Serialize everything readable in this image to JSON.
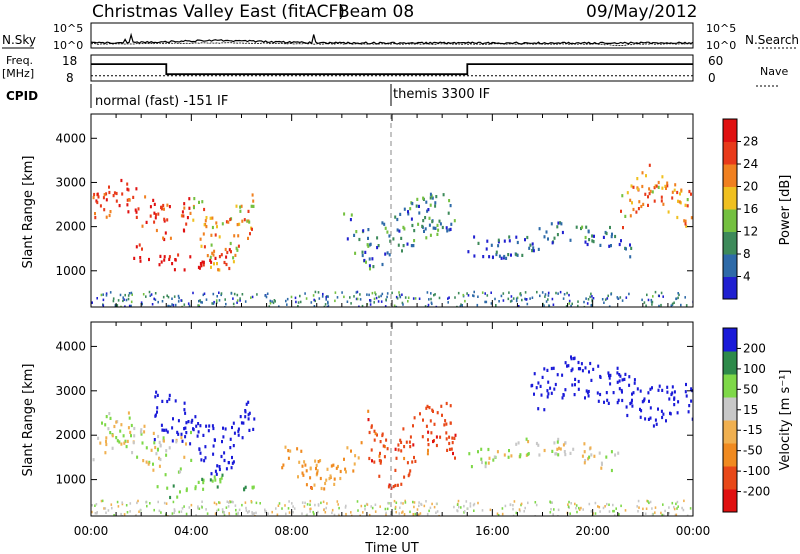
{
  "header": {
    "title": "Christmas Valley East (fitACF)",
    "beam": "Beam 08",
    "date": "09/May/2012"
  },
  "panels": {
    "nsky_label": "N.Sky",
    "nsky_ticks": [
      "10^5",
      "10^0"
    ],
    "nsearch_label": "N.Search",
    "nsearch_ticks": [
      "10^5",
      "10^0"
    ],
    "freq_label_1": "Freq.",
    "freq_label_2": "[MHz]",
    "freq_ticks": [
      "18",
      "8"
    ],
    "nave_label": "Nave",
    "nave_ticks": [
      "60",
      "0"
    ],
    "cpid_label": "CPID",
    "cpid_mode_1": "normal (fast) -151 IF",
    "cpid_mode_2": "themis 3300 IF"
  },
  "axes": {
    "ylabel": "Slant Range [km]",
    "xlabel": "Time UT",
    "yticks": [
      "4000",
      "3000",
      "2000",
      "1000"
    ],
    "xticks": [
      "00:00",
      "04:00",
      "08:00",
      "12:00",
      "16:00",
      "20:00",
      "00:00"
    ]
  },
  "colorbars": {
    "power": {
      "label": "Power [dB]",
      "ticks": [
        "28",
        "24",
        "20",
        "16",
        "12",
        "8",
        "4"
      ],
      "colors": [
        "#2020d0",
        "#2e6aa8",
        "#3d8a5a",
        "#74c040",
        "#f0c020",
        "#f08020",
        "#e83a1a",
        "#e01010"
      ]
    },
    "velocity": {
      "label": "Velocity [m s⁻¹]",
      "ticks": [
        "200",
        "100",
        "50",
        "15",
        "-15",
        "-50",
        "-100",
        "-200"
      ],
      "colors": [
        "#1a1ad8",
        "#2e8a4a",
        "#7ed848",
        "#c8c8c8",
        "#f0b050",
        "#f08a20",
        "#e84818",
        "#e01010"
      ]
    }
  },
  "chart_data": [
    {
      "type": "line",
      "title": "N.Sky / N.Search",
      "x": [
        "00:00",
        "04:00",
        "08:00",
        "12:00",
        "16:00",
        "20:00",
        "00:00"
      ],
      "series": [
        {
          "name": "N.Sky",
          "values": [
            1.2,
            1.6,
            1.0,
            1.1,
            1.0,
            1.1,
            1.1
          ]
        },
        {
          "name": "N.Search",
          "values": [
            0.9,
            1.0,
            0.6,
            0.9,
            0.9,
            0.7,
            1.0
          ]
        }
      ]
    },
    {
      "type": "line",
      "title": "Freq. [MHz] / Nave",
      "x_hours": [
        0,
        3,
        3,
        15,
        15,
        24
      ],
      "series": [
        {
          "name": "Freq.",
          "values": [
            14.5,
            14.5,
            10.6,
            10.6,
            14.5,
            14.5
          ]
        },
        {
          "name": "Nave",
          "values": [
            12,
            12,
            12,
            12,
            12,
            12
          ]
        }
      ],
      "ylim": [
        8,
        18
      ]
    },
    {
      "type": "heatmap",
      "title": "Power [dB]",
      "xlabel": "Time UT",
      "ylabel": "Slant Range [km]",
      "xlim_hours": [
        0,
        24
      ],
      "ylim": [
        180,
        4550
      ],
      "zlim": [
        0,
        30
      ],
      "features": [
        {
          "t0": 0.0,
          "t1": 4.0,
          "r0": 1800,
          "r1": 3000,
          "power": 26
        },
        {
          "t0": 1.5,
          "t1": 5.5,
          "r0": 1000,
          "r1": 1600,
          "power": 28
        },
        {
          "t0": 4.0,
          "t1": 6.5,
          "r0": 1100,
          "r1": 2800,
          "power": 18
        },
        {
          "t0": 10.0,
          "t1": 14.5,
          "r0": 1200,
          "r1": 2700,
          "power": 8
        },
        {
          "t0": 15.0,
          "t1": 21.5,
          "r0": 1300,
          "r1": 2100,
          "power": 6
        },
        {
          "t0": 21.0,
          "t1": 24.0,
          "r0": 2000,
          "r1": 3400,
          "power": 20
        }
      ]
    },
    {
      "type": "heatmap",
      "title": "Velocity [m s⁻¹]",
      "xlabel": "Time UT",
      "ylabel": "Slant Range [km]",
      "xlim_hours": [
        0,
        24
      ],
      "ylim": [
        180,
        4550
      ],
      "zlim": [
        -250,
        250
      ],
      "features": [
        {
          "t0": 0.0,
          "t1": 4.0,
          "r0": 1200,
          "r1": 2500,
          "velocity": 0
        },
        {
          "t0": 2.5,
          "t1": 6.5,
          "r0": 1300,
          "r1": 2900,
          "velocity": 220
        },
        {
          "t0": 7.5,
          "t1": 11.0,
          "r0": 900,
          "r1": 1900,
          "velocity": -60
        },
        {
          "t0": 11.0,
          "t1": 14.5,
          "r0": 1000,
          "r1": 2800,
          "velocity": -140
        },
        {
          "t0": 2.5,
          "t1": 6.5,
          "r0": 650,
          "r1": 1100,
          "velocity": 60
        },
        {
          "t0": 15.0,
          "t1": 21.0,
          "r0": 1300,
          "r1": 2000,
          "velocity": 5
        },
        {
          "t0": 17.5,
          "t1": 24.0,
          "r0": 2300,
          "r1": 3700,
          "velocity": 200
        }
      ]
    }
  ]
}
